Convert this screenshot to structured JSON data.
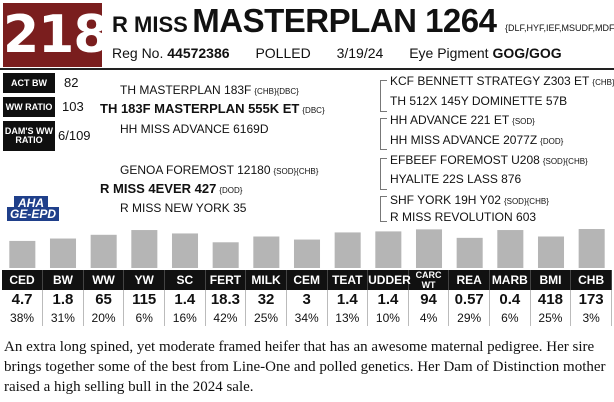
{
  "header": {
    "lot": "218",
    "name_prefix": "R MISS",
    "name_main": "MASTERPLAN 1264",
    "codes": "{DLF,HYF,IEF,MSUDF,MDF,DBF}",
    "reg_label": "Reg No.",
    "reg_no": "44572386",
    "polled": "POLLED",
    "dob": "3/19/24",
    "eye_label": "Eye Pigment",
    "eye_value": "GOG/GOG"
  },
  "metrics": [
    {
      "label": "ACT BW",
      "value": "82"
    },
    {
      "label": "WW RATIO",
      "value": "103"
    },
    {
      "label": "DAM'S WW RATIO",
      "value": "6/109"
    }
  ],
  "pedigree": {
    "sire_sire": {
      "name": "TH MASTERPLAN 183F",
      "codes": "{CHB}{DBC}"
    },
    "sire": {
      "name": "TH 183F MASTERPLAN 555K ET",
      "codes": "{DBC}"
    },
    "sire_dam": {
      "name": "HH MISS ADVANCE 6169D",
      "codes": ""
    },
    "dam_sire": {
      "name": "GENOA FOREMOST 12180",
      "codes": "{SOD}{CHB}"
    },
    "dam": {
      "name": "R MISS 4EVER 427",
      "codes": "{DOD}"
    },
    "dam_dam": {
      "name": "R MISS NEW YORK 35",
      "codes": ""
    },
    "ss_sire": {
      "name": "KCF BENNETT STRATEGY Z303 ET",
      "codes": "{CHB}{DBC}"
    },
    "ss_dam": {
      "name": "TH 512X 145Y DOMINETTE 57B",
      "codes": ""
    },
    "sd_sire": {
      "name": "HH ADVANCE 221 ET",
      "codes": "{SOD}"
    },
    "sd_dam": {
      "name": "HH MISS ADVANCE 2077Z",
      "codes": "{DOD}"
    },
    "ds_sire": {
      "name": "EFBEEF FOREMOST U208",
      "codes": "{SOD}{CHB}"
    },
    "ds_dam": {
      "name": "HYALITE 22S LASS 876",
      "codes": ""
    },
    "dd_sire": {
      "name": "SHF YORK 19H Y02",
      "codes": "{SOD}{CHB}"
    },
    "dd_dam": {
      "name": "R MISS REVOLUTION 603",
      "codes": ""
    }
  },
  "logo": {
    "top": "AHA",
    "bottom": "GE-EPD"
  },
  "colors": {
    "lot_bg": "#7a1e1e",
    "bar": "#b5b5b5",
    "header_bg": "#111111",
    "logo_blue": "#1f3f8a",
    "logo_red": "#c8102e"
  },
  "chart_data": {
    "type": "bar",
    "categories": [
      "CED",
      "BW",
      "WW",
      "YW",
      "SC",
      "FERT",
      "MILK",
      "CEM",
      "TEAT",
      "UDDER",
      "CARC WT",
      "REA",
      "MARB",
      "BMI",
      "CHB"
    ],
    "epd_values": [
      "4.7",
      "1.8",
      "65",
      "115",
      "1.4",
      "18.3",
      "32",
      "3",
      "1.4",
      "1.4",
      "94",
      "0.57",
      "0.4",
      "418",
      "173"
    ],
    "percentiles": [
      "38%",
      "31%",
      "20%",
      "6%",
      "16%",
      "42%",
      "25%",
      "34%",
      "13%",
      "10%",
      "4%",
      "29%",
      "6%",
      "25%",
      "3%"
    ],
    "percentile_values": [
      38,
      31,
      20,
      6,
      16,
      42,
      25,
      34,
      13,
      10,
      4,
      29,
      6,
      25,
      3
    ]
  },
  "description": "An extra long spined, yet moderate framed heifer that has an awesome maternal pedigree. Her sire brings together some of the best from Line-One and polled genetics. Her Dam of Distinction mother raised a high selling bull in the 2024 sale."
}
